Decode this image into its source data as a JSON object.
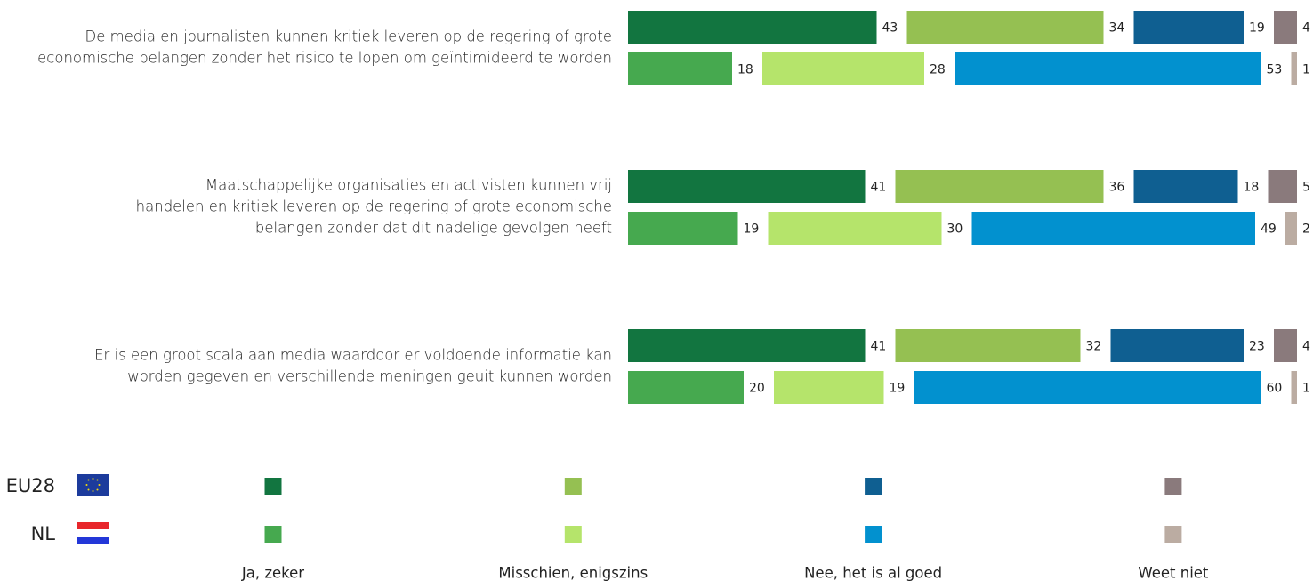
{
  "chart_data": {
    "type": "stacked-bar",
    "categories": [
      [
        "De media en journalisten kunnen kritiek leveren op de regering of grote",
        "economische belangen zonder het risico te lopen om geïntimideerd te worden"
      ],
      [
        "Maatschappelijke organisaties en activisten kunnen vrij",
        "handelen en kritiek leveren op de regering of grote economische",
        "belangen zonder dat dit nadelige gevolgen heeft"
      ],
      [
        "Er is een groot scala aan media waardoor er voldoende informatie kan",
        "worden gegeven en verschillende meningen geuit kunnen worden"
      ]
    ],
    "groups": [
      "EU28",
      "NL"
    ],
    "series": [
      {
        "name": "Ja, zeker",
        "colors": [
          "#127540",
          "#46a94f"
        ],
        "values": [
          [
            43,
            41,
            41
          ],
          [
            18,
            19,
            20
          ]
        ]
      },
      {
        "name": "Misschien, enigszins",
        "colors": [
          "#95c052",
          "#b5e46b"
        ],
        "values": [
          [
            34,
            36,
            32
          ],
          [
            28,
            30,
            19
          ]
        ]
      },
      {
        "name": "Nee, het is al goed",
        "colors": [
          "#0f5f91",
          "#0291cf"
        ],
        "values": [
          [
            19,
            18,
            23
          ],
          [
            53,
            49,
            60
          ]
        ]
      },
      {
        "name": "Weet niet",
        "colors": [
          "#8a7a7c",
          "#bbaca2"
        ],
        "values": [
          [
            4,
            5,
            4
          ],
          [
            1,
            2,
            1
          ]
        ]
      }
    ]
  }
}
